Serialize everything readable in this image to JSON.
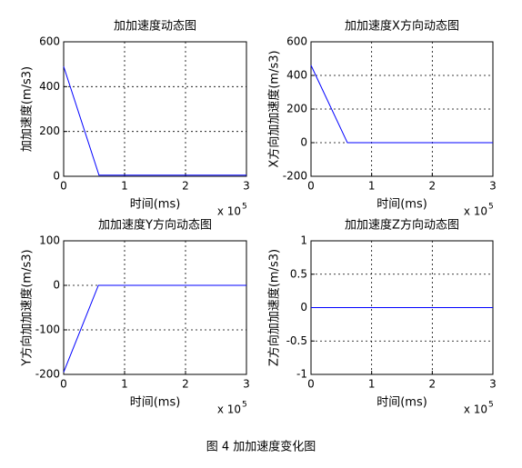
{
  "chart_data": [
    {
      "type": "line",
      "title": "加加速度动态图",
      "x_label": "时间(ms)",
      "y_label": "加加速度(m/s3)",
      "x_scale_label": "x 10",
      "x_scale_exponent": "5",
      "x": [
        0,
        58000,
        300000
      ],
      "values": [
        490,
        5,
        5
      ],
      "color": "#0000ff",
      "xlim": [
        0,
        300000
      ],
      "xticks": [
        0,
        {
          "value": 100000,
          "label": "1"
        },
        {
          "value": 200000,
          "label": "2"
        },
        {
          "value": 300000,
          "label": "3"
        }
      ],
      "ylim": [
        0,
        600
      ],
      "yticks": [
        0,
        200,
        400,
        600
      ],
      "grid": true
    },
    {
      "type": "line",
      "title": "加加速度X方向动态图",
      "x_label": "时间(ms)",
      "y_label": "X方向加加速度(m/s3)",
      "x_scale_label": "x 10",
      "x_scale_exponent": "5",
      "x": [
        0,
        60000,
        300000
      ],
      "values": [
        460,
        0,
        0
      ],
      "color": "#0000ff",
      "xlim": [
        0,
        300000
      ],
      "xticks": [
        0,
        {
          "value": 100000,
          "label": "1"
        },
        {
          "value": 200000,
          "label": "2"
        },
        {
          "value": 300000,
          "label": "3"
        }
      ],
      "ylim": [
        -200,
        600
      ],
      "yticks": [
        -200,
        0,
        200,
        400,
        600
      ],
      "grid": true
    },
    {
      "type": "line",
      "title": "加加速度Y方向动态图",
      "x_label": "时间(ms)",
      "y_label": "Y方向加加速度(m/s3)",
      "x_scale_label": "x 10",
      "x_scale_exponent": "5",
      "x": [
        0,
        57000,
        300000
      ],
      "values": [
        -195,
        0,
        0
      ],
      "color": "#0000ff",
      "xlim": [
        0,
        300000
      ],
      "xticks": [
        0,
        {
          "value": 100000,
          "label": "1"
        },
        {
          "value": 200000,
          "label": "2"
        },
        {
          "value": 300000,
          "label": "3"
        }
      ],
      "ylim": [
        -200,
        100
      ],
      "yticks": [
        -200,
        -100,
        0,
        100
      ],
      "grid": true
    },
    {
      "type": "line",
      "title": "加加速度Z方向动态图",
      "x_label": "时间(ms)",
      "y_label": "Z方向加加速度(m/s3)",
      "x_scale_label": "x 10",
      "x_scale_exponent": "5",
      "x": [
        0,
        300000
      ],
      "values": [
        0,
        0
      ],
      "color": "#0000ff",
      "xlim": [
        0,
        300000
      ],
      "xticks": [
        0,
        {
          "value": 100000,
          "label": "1"
        },
        {
          "value": 200000,
          "label": "2"
        },
        {
          "value": 300000,
          "label": "3"
        }
      ],
      "ylim": [
        -1,
        1
      ],
      "yticks": [
        -1,
        -0.5,
        0,
        0.5,
        1
      ],
      "grid": true
    }
  ],
  "caption": "图 4  加加速度变化图"
}
